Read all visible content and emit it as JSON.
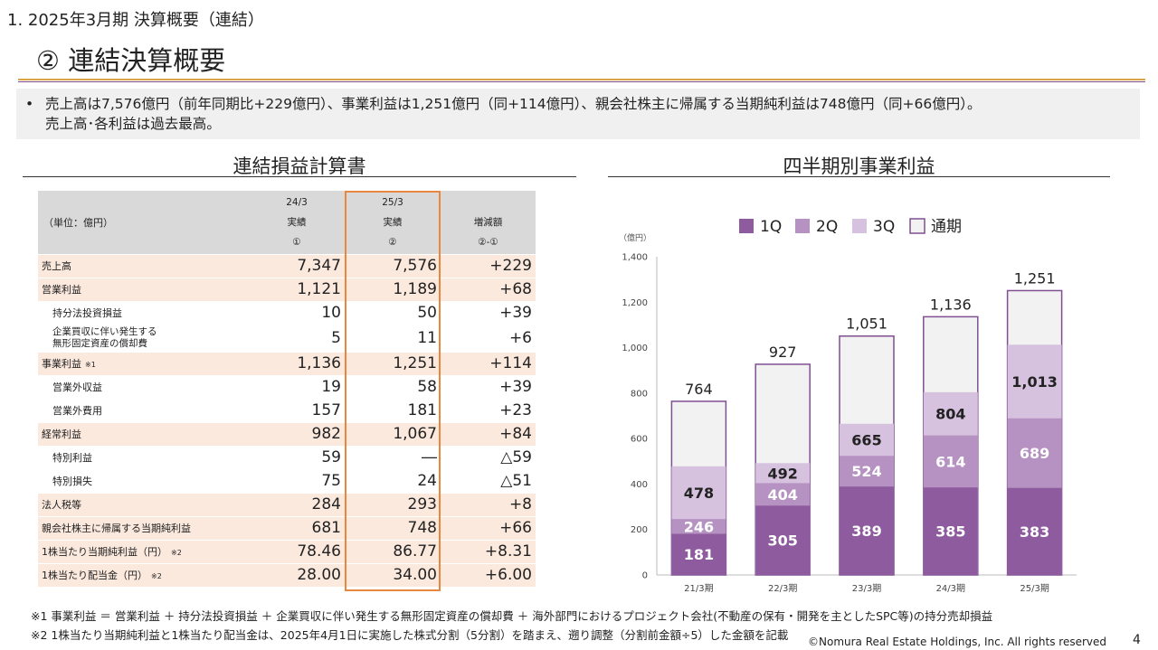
{
  "header": {
    "section": "1. 2025年3月期 決算概要（連結）",
    "title": "② 連結決算概要"
  },
  "summary": {
    "bullet": "•",
    "line1": "売上高は7,576億円（前年同期比+229億円）、事業利益は1,251億円（同+114億円）、親会社株主に帰属する当期純利益は748億円（同+66億円）。",
    "line2": "売上高･各利益は過去最高。"
  },
  "table": {
    "title": "連結損益計算書",
    "unit": "（単位：億円）",
    "col1": {
      "year": "24/3",
      "kind": "実績",
      "mark": "①"
    },
    "col2": {
      "year": "25/3",
      "kind": "実績",
      "mark": "②"
    },
    "col3": {
      "year": "",
      "kind": "増減額",
      "mark": "②-①"
    },
    "rows": [
      {
        "label": "売上高",
        "note": "",
        "v1": "7,347",
        "v2": "7,576",
        "v3": "+229"
      },
      {
        "label": "営業利益",
        "note": "",
        "v1": "1,121",
        "v2": "1,189",
        "v3": "+68"
      },
      {
        "label": "持分法投資損益",
        "note": "",
        "v1": "10",
        "v2": "50",
        "v3": "+39"
      },
      {
        "label": "企業買収に伴い発生する",
        "label2": "無形固定資産の償却費",
        "note": "",
        "v1": "5",
        "v2": "11",
        "v3": "+6"
      },
      {
        "label": "事業利益",
        "note": "※1",
        "v1": "1,136",
        "v2": "1,251",
        "v3": "+114"
      },
      {
        "label": "営業外収益",
        "note": "",
        "v1": "19",
        "v2": "58",
        "v3": "+39"
      },
      {
        "label": "営業外費用",
        "note": "",
        "v1": "157",
        "v2": "181",
        "v3": "+23"
      },
      {
        "label": "経常利益",
        "note": "",
        "v1": "982",
        "v2": "1,067",
        "v3": "+84"
      },
      {
        "label": "特別利益",
        "note": "",
        "v1": "59",
        "v2": "―",
        "v3": "△59"
      },
      {
        "label": "特別損失",
        "note": "",
        "v1": "75",
        "v2": "24",
        "v3": "△51"
      },
      {
        "label": "法人税等",
        "note": "",
        "v1": "284",
        "v2": "293",
        "v3": "+8"
      },
      {
        "label": "親会社株主に帰属する当期純利益",
        "note": "",
        "v1": "681",
        "v2": "748",
        "v3": "+66"
      },
      {
        "label": "1株当たり当期純利益（円）",
        "note": "※2",
        "v1": "78.46",
        "v2": "86.77",
        "v3": "+8.31"
      },
      {
        "label": "1株当たり配当金（円）",
        "note": "※2",
        "v1": "28.00",
        "v2": "34.00",
        "v3": "+6.00"
      }
    ]
  },
  "chart_title": "四半期別事業利益",
  "chart_data": {
    "type": "bar",
    "stacked": true,
    "unit_label": "（億円）",
    "categories": [
      "21/3期",
      "22/3期",
      "23/3期",
      "24/3期",
      "25/3期"
    ],
    "ylim": [
      0,
      1400
    ],
    "yticks": [
      "0",
      "200",
      "400",
      "600",
      "800",
      "1,000",
      "1,200",
      "1,400"
    ],
    "legend": [
      {
        "name": "1Q",
        "color": "#8e5b9e"
      },
      {
        "name": "2Q",
        "color": "#b592c1"
      },
      {
        "name": "3Q",
        "color": "#d6c1de"
      },
      {
        "name": "通期",
        "color": "#f2f2f2"
      }
    ],
    "cumulative": {
      "1Q": [
        181,
        305,
        389,
        385,
        383
      ],
      "2Q": [
        246,
        404,
        524,
        614,
        689
      ],
      "3Q": [
        478,
        492,
        665,
        804,
        1013
      ],
      "通期": [
        764,
        927,
        1051,
        1136,
        1251
      ]
    },
    "labels": {
      "1Q": [
        "181",
        "305",
        "389",
        "385",
        "383"
      ],
      "2Q": [
        "246",
        "404",
        "524",
        "614",
        "689"
      ],
      "3Q": [
        "478",
        "492",
        "665",
        "804",
        "1,013"
      ],
      "通期": [
        "764",
        "927",
        "1,051",
        "1,136",
        "1,251"
      ]
    }
  },
  "footnotes": {
    "n1": "※1 事業利益 ＝ 営業利益 ＋ 持分法投資損益 ＋ 企業買収に伴い発生する無形固定資産の償却費 ＋ 海外部門におけるプロジェクト会社(不動産の保有・開発を主としたSPC等)の持分売却損益",
    "n2": "※2 1株当たり当期純利益と1株当たり配当金は、2025年4月1日に実施した株式分割（5分割）を踏まえ、遡り調整（分割前金額÷5）した金額を記載"
  },
  "copyright": "©Nomura Real Estate Holdings, Inc. All rights reserved",
  "page_number": "4"
}
